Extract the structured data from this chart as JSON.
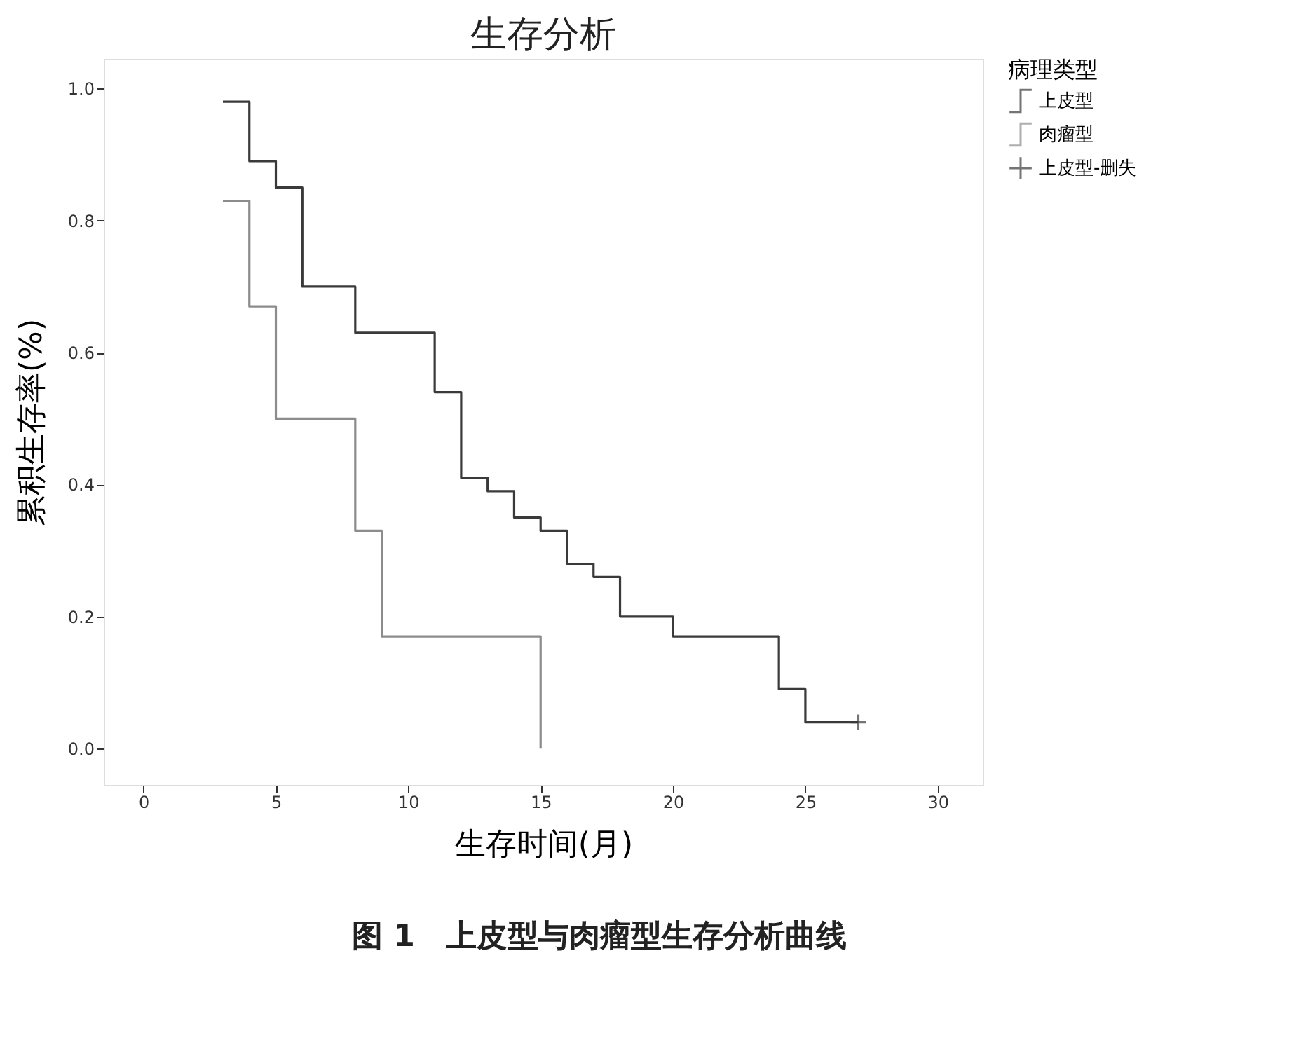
{
  "chart_data": {
    "type": "step",
    "title": "生存分析",
    "xlabel": "生存时间(月)",
    "ylabel": "累积生存率(%)",
    "legend_title": "病理类型",
    "series": [
      {
        "name": "上皮型",
        "color": "#3a3a3a",
        "x": [
          3,
          4,
          5,
          6,
          8,
          11,
          12,
          13,
          14,
          15,
          16,
          17,
          18,
          20,
          24,
          25,
          27
        ],
        "values": [
          0.98,
          0.89,
          0.85,
          0.7,
          0.63,
          0.54,
          0.41,
          0.39,
          0.35,
          0.33,
          0.28,
          0.26,
          0.2,
          0.17,
          0.09,
          0.04,
          0.04
        ]
      },
      {
        "name": "肉瘤型",
        "color": "#8c8c8c",
        "x": [
          3,
          4,
          5,
          8,
          9,
          15
        ],
        "values": [
          0.83,
          0.67,
          0.5,
          0.33,
          0.17,
          0.0
        ]
      },
      {
        "name": "上皮型-删失",
        "type": "scatter",
        "marker": "cross",
        "color": "#3a3a3a",
        "x": [
          27
        ],
        "values": [
          0.04
        ]
      }
    ],
    "xlim": [
      -1.5,
      31.7
    ],
    "xticks": [
      0,
      5,
      10,
      15,
      20,
      25,
      30
    ],
    "ylim": [
      -0.055,
      1.045
    ],
    "yticks": [
      {
        "value": 0,
        "label": "0.0"
      },
      {
        "value": 0.2,
        "label": "0.2"
      },
      {
        "value": 0.4,
        "label": "0.4"
      },
      {
        "value": 0.6,
        "label": "0.6"
      },
      {
        "value": 0.8,
        "label": "0.8"
      },
      {
        "value": 1,
        "label": "1.0"
      }
    ],
    "grid": false,
    "legend": "top right",
    "annotations": [
      "图 1　上皮型与肉瘤型生存分析曲线"
    ]
  }
}
